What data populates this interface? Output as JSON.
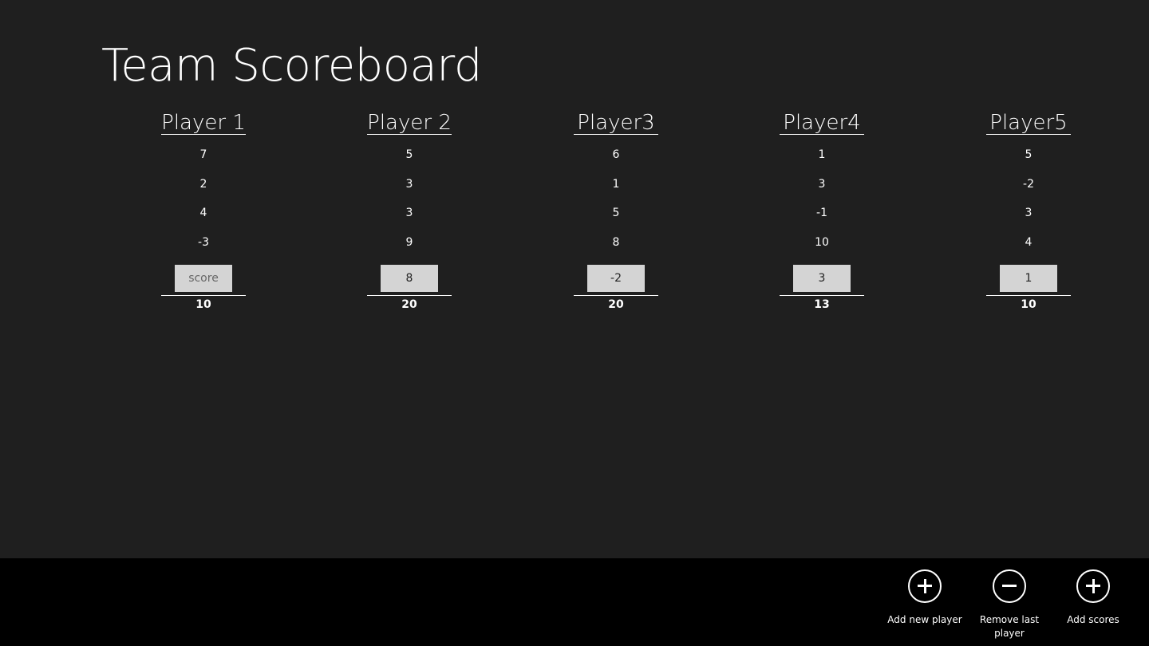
{
  "page_title": "Team Scoreboard",
  "players": [
    {
      "name": "Player 1",
      "scores": [
        "7",
        "2",
        "4",
        "-3"
      ],
      "input_value": "",
      "input_placeholder": "score",
      "total": "10"
    },
    {
      "name": "Player 2",
      "scores": [
        "5",
        "3",
        "3",
        "9"
      ],
      "input_value": "8",
      "input_placeholder": "score",
      "total": "20"
    },
    {
      "name": "Player3",
      "scores": [
        "6",
        "1",
        "5",
        "8"
      ],
      "input_value": "-2",
      "input_placeholder": "score",
      "total": "20"
    },
    {
      "name": "Player4",
      "scores": [
        "1",
        "3",
        "-1",
        "10"
      ],
      "input_value": "3",
      "input_placeholder": "score",
      "total": "13"
    },
    {
      "name": "Player5",
      "scores": [
        "5",
        "-2",
        "3",
        "4"
      ],
      "input_value": "1",
      "input_placeholder": "score",
      "total": "10"
    }
  ],
  "appbar": {
    "buttons": [
      {
        "label": "Add new player",
        "icon": "plus-circle-icon"
      },
      {
        "label": "Remove last player",
        "icon": "minus-circle-icon"
      },
      {
        "label": "Add scores",
        "icon": "plus-circle-icon"
      }
    ]
  },
  "colors": {
    "background": "#1f1f1f",
    "appbar": "#000000",
    "input": "#d4d4d4"
  }
}
